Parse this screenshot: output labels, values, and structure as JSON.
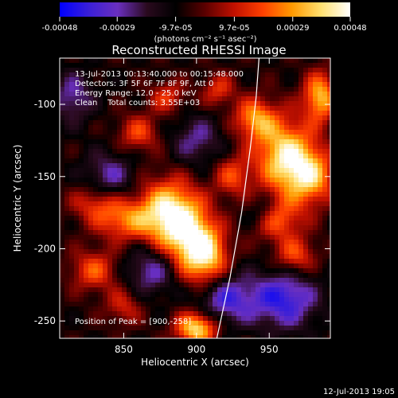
{
  "colorbar": {
    "ticks": [
      {
        "value": -0.00048,
        "label": "-0.00048"
      },
      {
        "value": -0.00029,
        "label": "-0.00029"
      },
      {
        "value": -9.7e-05,
        "label": "-9.7e-05"
      },
      {
        "value": 9.7e-05,
        "label": "9.7e-05"
      },
      {
        "value": 0.00029,
        "label": "0.00029"
      },
      {
        "value": 0.00048,
        "label": "0.00048"
      }
    ],
    "range": [
      -0.00048,
      0.00048
    ],
    "units": "(photons cm⁻² s⁻¹ asec⁻²)",
    "colormap": [
      "#0000ff",
      "#3a1fd8",
      "#6a2fbf",
      "#2a0a1e",
      "#000000",
      "#5a0000",
      "#c01000",
      "#ff4000",
      "#ff9a00",
      "#ffe070",
      "#ffffff"
    ]
  },
  "chart_data": {
    "type": "heatmap",
    "title": "Reconstructed RHESSI Image",
    "xlabel": "Heliocentric X (arcsec)",
    "ylabel": "Heliocentric Y (arcsec)",
    "xlim": [
      806,
      992
    ],
    "ylim": [
      -262,
      -68
    ],
    "xticks": [
      {
        "value": 850,
        "label": "850"
      },
      {
        "value": 900,
        "label": "900"
      },
      {
        "value": 950,
        "label": "950"
      }
    ],
    "yticks": [
      {
        "value": -100,
        "label": "-100"
      },
      {
        "value": -150,
        "label": "-150"
      },
      {
        "value": -200,
        "label": "-200"
      },
      {
        "value": -250,
        "label": "-250"
      }
    ],
    "annotations": [
      "13-Jul-2013 00:13:40.000 to 00:15:48.000",
      "Detectors: 3F 5F 6F 7F 8F 9F, Att 0",
      "Energy Range: 12.0 - 25.0 keV",
      "Clean    Total counts: 3.55E+03"
    ],
    "peak_label": "Position of Peak = [900,-258]",
    "peak": {
      "x": 900,
      "y": -258
    },
    "limb_curve": [
      [
        914,
        -262
      ],
      [
        923,
        -220
      ],
      [
        931,
        -175
      ],
      [
        937,
        -130
      ],
      [
        941,
        -95
      ],
      [
        943,
        -68
      ]
    ],
    "blobs": [
      {
        "x": 880,
        "y": -175,
        "amp": 1.0,
        "sx": 14,
        "sy": 16
      },
      {
        "x": 895,
        "y": -195,
        "amp": 0.85,
        "sx": 12,
        "sy": 18
      },
      {
        "x": 908,
        "y": -205,
        "amp": 0.75,
        "sx": 10,
        "sy": 14
      },
      {
        "x": 850,
        "y": -180,
        "amp": 0.6,
        "sx": 14,
        "sy": 10
      },
      {
        "x": 830,
        "y": -168,
        "amp": 0.45,
        "sx": 12,
        "sy": 9
      },
      {
        "x": 900,
        "y": -255,
        "amp": 1.0,
        "sx": 10,
        "sy": 8
      },
      {
        "x": 960,
        "y": -135,
        "amp": 0.95,
        "sx": 14,
        "sy": 18
      },
      {
        "x": 978,
        "y": -150,
        "amp": 0.8,
        "sx": 12,
        "sy": 14
      },
      {
        "x": 985,
        "y": -95,
        "amp": 0.85,
        "sx": 8,
        "sy": 12
      },
      {
        "x": 940,
        "y": -110,
        "amp": 0.7,
        "sx": 10,
        "sy": 10
      },
      {
        "x": 955,
        "y": -180,
        "amp": 0.6,
        "sx": 12,
        "sy": 10
      },
      {
        "x": 968,
        "y": -205,
        "amp": 0.55,
        "sx": 10,
        "sy": 9
      },
      {
        "x": 830,
        "y": -215,
        "amp": 0.55,
        "sx": 12,
        "sy": 10
      },
      {
        "x": 860,
        "y": -120,
        "amp": 0.5,
        "sx": 10,
        "sy": 9
      },
      {
        "x": 880,
        "y": -95,
        "amp": 0.45,
        "sx": 9,
        "sy": 8
      },
      {
        "x": 850,
        "y": -240,
        "amp": 0.4,
        "sx": 9,
        "sy": 9
      },
      {
        "x": 925,
        "y": -150,
        "amp": 0.5,
        "sx": 9,
        "sy": 10
      },
      {
        "x": 915,
        "y": -90,
        "amp": 0.45,
        "sx": 8,
        "sy": 8
      },
      {
        "x": 840,
        "y": -150,
        "amp": -0.45,
        "sx": 12,
        "sy": 12
      },
      {
        "x": 870,
        "y": -215,
        "amp": -0.5,
        "sx": 14,
        "sy": 12
      },
      {
        "x": 920,
        "y": -235,
        "amp": -0.6,
        "sx": 14,
        "sy": 12
      },
      {
        "x": 960,
        "y": -235,
        "amp": -0.7,
        "sx": 16,
        "sy": 14
      },
      {
        "x": 945,
        "y": -175,
        "amp": -0.35,
        "sx": 8,
        "sy": 8
      },
      {
        "x": 900,
        "y": -125,
        "amp": -0.4,
        "sx": 12,
        "sy": 12
      },
      {
        "x": 815,
        "y": -95,
        "amp": -0.45,
        "sx": 10,
        "sy": 12
      }
    ]
  },
  "footer": {
    "timestamp": "12-Jul-2013 19:05"
  }
}
